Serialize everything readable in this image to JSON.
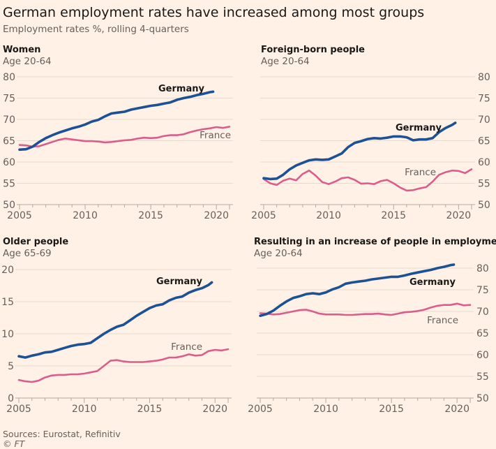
{
  "title": "German employment rates have increased among most groups",
  "subtitle": "Employment rates %, rolling 4-quarters",
  "source": "Sources: Eurostat, Refinitiv",
  "copyright": "© FT",
  "colors": {
    "background": "#FFF1E5",
    "Germany": "#1D5196",
    "France": "#DC5C8C"
  },
  "chart_data": [
    {
      "type": "line",
      "title": "Women",
      "subtitle": "Age 20-64",
      "ylim": [
        50,
        80
      ],
      "yticks": [
        50,
        55,
        60,
        65,
        70,
        75,
        80
      ],
      "xticks": [
        2005,
        2010,
        2015,
        2020
      ],
      "xlim": [
        2005,
        2021
      ],
      "y_axis_side": "left",
      "grid": true,
      "series": [
        {
          "name": "Germany",
          "x": [
            2005,
            2005.5,
            2006,
            2006.5,
            2007,
            2007.5,
            2008,
            2008.5,
            2009,
            2009.5,
            2010,
            2010.5,
            2011,
            2011.5,
            2012,
            2012.5,
            2013,
            2013.5,
            2014,
            2014.5,
            2015,
            2015.5,
            2016,
            2016.5,
            2017,
            2017.5,
            2018,
            2018.5,
            2019,
            2019.5,
            2019.75
          ],
          "values": [
            62.9,
            63.0,
            63.6,
            64.7,
            65.6,
            66.3,
            66.9,
            67.4,
            67.9,
            68.3,
            68.8,
            69.5,
            69.9,
            70.7,
            71.4,
            71.6,
            71.8,
            72.3,
            72.6,
            72.9,
            73.2,
            73.4,
            73.7,
            74.0,
            74.6,
            75.0,
            75.3,
            75.7,
            76.0,
            76.4,
            76.5
          ]
        },
        {
          "name": "France",
          "x": [
            2005,
            2005.5,
            2006,
            2006.5,
            2007,
            2007.5,
            2008,
            2008.5,
            2009,
            2009.5,
            2010,
            2010.5,
            2011,
            2011.5,
            2012,
            2012.5,
            2013,
            2013.5,
            2014,
            2014.5,
            2015,
            2015.5,
            2016,
            2016.5,
            2017,
            2017.5,
            2018,
            2018.5,
            2019,
            2019.5,
            2020,
            2020.5,
            2021
          ],
          "values": [
            64.0,
            63.9,
            63.6,
            63.7,
            64.2,
            64.7,
            65.2,
            65.5,
            65.3,
            65.1,
            64.9,
            64.9,
            64.8,
            64.6,
            64.7,
            64.9,
            65.1,
            65.2,
            65.5,
            65.7,
            65.6,
            65.7,
            66.1,
            66.3,
            66.3,
            66.5,
            67.0,
            67.4,
            67.7,
            67.9,
            68.2,
            68.0,
            68.3
          ]
        }
      ]
    },
    {
      "type": "line",
      "title": "Foreign-born people",
      "subtitle": "Age 20-64",
      "ylim": [
        50,
        80
      ],
      "yticks": [
        50,
        55,
        60,
        65,
        70,
        75,
        80
      ],
      "xticks": [
        2005,
        2010,
        2015,
        2020
      ],
      "xlim": [
        2005,
        2021
      ],
      "y_axis_side": "right",
      "grid": true,
      "series": [
        {
          "name": "Germany",
          "x": [
            2005,
            2005.5,
            2006,
            2006.5,
            2007,
            2007.5,
            2008,
            2008.5,
            2009,
            2009.5,
            2010,
            2010.5,
            2011,
            2011.5,
            2012,
            2012.5,
            2013,
            2013.5,
            2014,
            2014.5,
            2015,
            2015.5,
            2016,
            2016.5,
            2017,
            2017.5,
            2018,
            2018.5,
            2019,
            2019.5,
            2019.75
          ],
          "values": [
            56.2,
            56.0,
            56.1,
            57.0,
            58.3,
            59.2,
            59.8,
            60.4,
            60.6,
            60.5,
            60.6,
            61.3,
            62.0,
            63.5,
            64.5,
            64.9,
            65.4,
            65.6,
            65.5,
            65.7,
            66.0,
            66.0,
            65.8,
            65.1,
            65.3,
            65.3,
            65.6,
            67.0,
            68.0,
            68.7,
            69.2
          ]
        },
        {
          "name": "France",
          "x": [
            2005,
            2005.5,
            2006,
            2006.5,
            2007,
            2007.5,
            2008,
            2008.5,
            2009,
            2009.5,
            2010,
            2010.5,
            2011,
            2011.5,
            2012,
            2012.5,
            2013,
            2013.5,
            2014,
            2014.5,
            2015,
            2015.5,
            2016,
            2016.5,
            2017,
            2017.5,
            2018,
            2018.5,
            2019,
            2019.5,
            2020,
            2020.5,
            2021
          ],
          "values": [
            56.0,
            55.0,
            54.6,
            55.6,
            56.1,
            55.7,
            57.2,
            58.0,
            56.8,
            55.3,
            54.8,
            55.4,
            56.2,
            56.4,
            55.8,
            54.9,
            55.0,
            54.8,
            55.5,
            55.8,
            55.0,
            54.0,
            53.3,
            53.4,
            53.8,
            54.1,
            55.4,
            57.0,
            57.6,
            58.0,
            57.9,
            57.4,
            58.3
          ]
        }
      ]
    },
    {
      "type": "line",
      "title": "Older people",
      "subtitle": "Age 65-69",
      "ylim": [
        0,
        20
      ],
      "yticks": [
        0,
        5,
        10,
        15,
        20
      ],
      "xticks": [
        2005,
        2010,
        2015,
        2020
      ],
      "xlim": [
        2005,
        2021
      ],
      "y_axis_side": "left",
      "grid": true,
      "series": [
        {
          "name": "Germany",
          "x": [
            2005,
            2005.5,
            2006,
            2006.5,
            2007,
            2007.5,
            2008,
            2008.5,
            2009,
            2009.5,
            2010,
            2010.5,
            2011,
            2011.5,
            2012,
            2012.5,
            2013,
            2013.5,
            2014,
            2014.5,
            2015,
            2015.5,
            2016,
            2016.5,
            2017,
            2017.5,
            2018,
            2018.5,
            2019,
            2019.5,
            2019.75
          ],
          "values": [
            6.5,
            6.3,
            6.6,
            6.8,
            7.1,
            7.2,
            7.5,
            7.8,
            8.1,
            8.3,
            8.4,
            8.6,
            9.3,
            10.0,
            10.6,
            11.1,
            11.4,
            12.1,
            12.8,
            13.4,
            14.0,
            14.4,
            14.6,
            15.2,
            15.6,
            15.8,
            16.4,
            16.8,
            17.1,
            17.6,
            18.0
          ]
        },
        {
          "name": "France",
          "x": [
            2005,
            2005.5,
            2006,
            2006.5,
            2007,
            2007.5,
            2008,
            2008.5,
            2009,
            2009.5,
            2010,
            2010.5,
            2011,
            2011.5,
            2012,
            2012.5,
            2013,
            2013.5,
            2014,
            2014.5,
            2015,
            2015.5,
            2016,
            2016.5,
            2017,
            2017.5,
            2018,
            2018.5,
            2019,
            2019.5,
            2020,
            2020.5,
            2021
          ],
          "values": [
            2.8,
            2.6,
            2.5,
            2.7,
            3.2,
            3.5,
            3.6,
            3.6,
            3.7,
            3.7,
            3.8,
            4.0,
            4.2,
            5.0,
            5.8,
            5.9,
            5.7,
            5.6,
            5.6,
            5.6,
            5.7,
            5.8,
            6.0,
            6.3,
            6.3,
            6.5,
            6.8,
            6.6,
            6.7,
            7.3,
            7.5,
            7.4,
            7.6
          ]
        }
      ]
    },
    {
      "type": "line",
      "title": "Resulting in an increase of people in employment",
      "subtitle": "Age 20-64",
      "ylim": [
        50,
        80
      ],
      "yticks": [
        50,
        55,
        60,
        65,
        70,
        75,
        80
      ],
      "xticks": [
        2005,
        2010,
        2015,
        2020
      ],
      "xlim": [
        2005,
        2021
      ],
      "y_axis_side": "right",
      "grid": true,
      "series": [
        {
          "name": "Germany",
          "x": [
            2005,
            2005.5,
            2006,
            2006.5,
            2007,
            2007.5,
            2008,
            2008.5,
            2009,
            2009.5,
            2010,
            2010.5,
            2011,
            2011.5,
            2012,
            2012.5,
            2013,
            2013.5,
            2014,
            2014.5,
            2015,
            2015.5,
            2016,
            2016.5,
            2017,
            2017.5,
            2018,
            2018.5,
            2019,
            2019.5,
            2019.75
          ],
          "values": [
            69.0,
            69.4,
            70.2,
            71.3,
            72.3,
            73.1,
            73.5,
            74.0,
            74.2,
            74.0,
            74.4,
            75.1,
            75.6,
            76.4,
            76.7,
            76.9,
            77.1,
            77.4,
            77.6,
            77.8,
            78.0,
            78.0,
            78.3,
            78.7,
            79.0,
            79.3,
            79.6,
            80.0,
            80.3,
            80.7,
            80.8
          ]
        },
        {
          "name": "France",
          "x": [
            2005,
            2005.5,
            2006,
            2006.5,
            2007,
            2007.5,
            2008,
            2008.5,
            2009,
            2009.5,
            2010,
            2010.5,
            2011,
            2011.5,
            2012,
            2012.5,
            2013,
            2013.5,
            2014,
            2014.5,
            2015,
            2015.5,
            2016,
            2016.5,
            2017,
            2017.5,
            2018,
            2018.5,
            2019,
            2019.5,
            2020,
            2020.5,
            2021
          ],
          "values": [
            69.6,
            69.5,
            69.3,
            69.4,
            69.7,
            70.0,
            70.3,
            70.4,
            70.0,
            69.5,
            69.3,
            69.3,
            69.3,
            69.2,
            69.2,
            69.3,
            69.4,
            69.4,
            69.5,
            69.3,
            69.2,
            69.5,
            69.8,
            69.9,
            70.1,
            70.4,
            70.9,
            71.3,
            71.5,
            71.5,
            71.8,
            71.4,
            71.5
          ]
        }
      ]
    }
  ]
}
